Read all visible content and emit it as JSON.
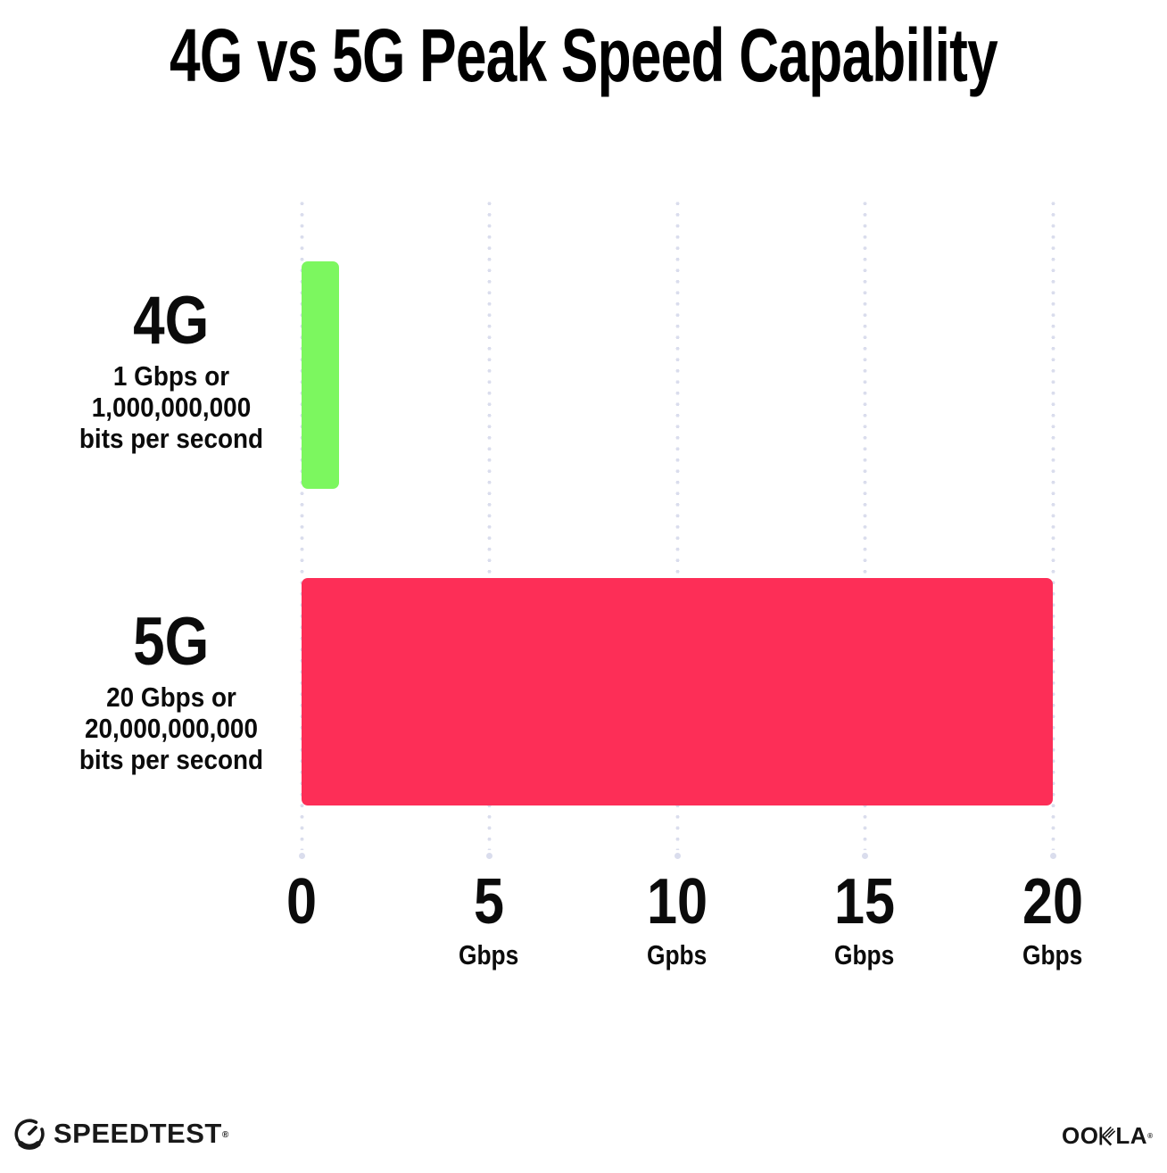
{
  "title": "4G vs 5G Peak Speed Capability",
  "chart_data": {
    "type": "bar",
    "orientation": "horizontal",
    "title": "4G vs 5G Peak Speed Capability",
    "categories": [
      "4G",
      "5G"
    ],
    "values": [
      1,
      20
    ],
    "value_unit": "Gbps",
    "bar_colors": [
      "#7cf75f",
      "#fd2e57"
    ],
    "xlim": [
      0,
      20
    ],
    "x_ticks": [
      0,
      5,
      10,
      15,
      20
    ],
    "grid": "vertical dotted gridlines",
    "legend": "none",
    "row_annotations": [
      [
        "1 Gbps or",
        "1,000,000,000",
        "bits per second"
      ],
      [
        "20 Gbps or",
        "20,000,000,000",
        "bits per second"
      ]
    ]
  },
  "rows": [
    {
      "label": "4G",
      "line1": "1 Gbps or",
      "line2": "1,000,000,000",
      "line3": "bits per second"
    },
    {
      "label": "5G",
      "line1": "20 Gbps or",
      "line2": "20,000,000,000",
      "line3": "bits per second"
    }
  ],
  "axis": {
    "ticks": [
      {
        "num": "0",
        "unit": ""
      },
      {
        "num": "5",
        "unit": "Gbps"
      },
      {
        "num": "10",
        "unit": "Gpbs"
      },
      {
        "num": "15",
        "unit": "Gbps"
      },
      {
        "num": "20",
        "unit": "Gbps"
      }
    ]
  },
  "footer": {
    "speedtest_label": "SPEEDTEST",
    "ookla_oo": "OO",
    "ookla_la": "LA",
    "ookla_full": "OOKLA",
    "trademark": "®"
  },
  "colors": {
    "bar_4g": "#7cf75f",
    "bar_5g": "#fd2e57",
    "grid_dot": "#dadded",
    "text": "#0b0b0b"
  }
}
